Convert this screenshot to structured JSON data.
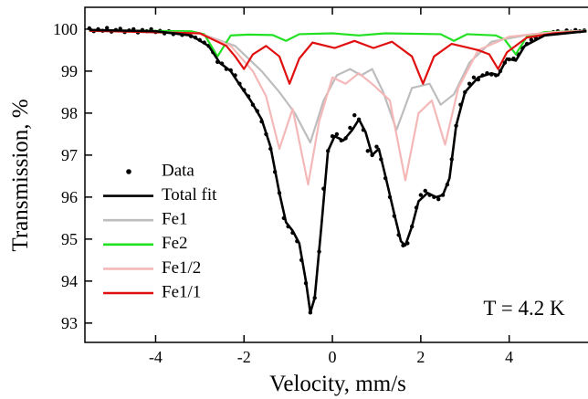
{
  "chart_data": {
    "type": "line",
    "xlabel": "Velocity, mm/s",
    "ylabel": "Transmission, %",
    "annotation": "T = 4.2 K",
    "xlim": [
      -5.6,
      5.8
    ],
    "ylim": [
      92.54,
      100.52
    ],
    "xticks": [
      -4,
      -2,
      0,
      2,
      4
    ],
    "yticks": [
      93,
      94,
      95,
      96,
      97,
      98,
      99,
      100
    ],
    "series": [
      {
        "name": "Data",
        "kind": "scatter",
        "color": "#000000",
        "x": [
          -5.5,
          -5.4,
          -5.3,
          -5.2,
          -5.1,
          -5.0,
          -4.9,
          -4.8,
          -4.7,
          -4.6,
          -4.5,
          -4.4,
          -4.3,
          -4.2,
          -4.1,
          -4.0,
          -3.9,
          -3.8,
          -3.7,
          -3.6,
          -3.5,
          -3.4,
          -3.3,
          -3.2,
          -3.1,
          -3.0,
          -2.9,
          -2.8,
          -2.7,
          -2.6,
          -2.5,
          -2.4,
          -2.3,
          -2.2,
          -2.1,
          -2.0,
          -1.9,
          -1.8,
          -1.7,
          -1.6,
          -1.5,
          -1.4,
          -1.3,
          -1.2,
          -1.1,
          -1.0,
          -0.9,
          -0.8,
          -0.7,
          -0.6,
          -0.5,
          -0.4,
          -0.3,
          -0.2,
          -0.1,
          0.0,
          0.1,
          0.2,
          0.3,
          0.4,
          0.5,
          0.6,
          0.7,
          0.8,
          0.9,
          1.0,
          1.1,
          1.2,
          1.3,
          1.4,
          1.5,
          1.6,
          1.7,
          1.8,
          1.9,
          2.0,
          2.1,
          2.2,
          2.3,
          2.4,
          2.5,
          2.6,
          2.7,
          2.8,
          2.9,
          3.0,
          3.1,
          3.2,
          3.3,
          3.4,
          3.5,
          3.6,
          3.7,
          3.8,
          3.9,
          4.0,
          4.1,
          4.2,
          4.3,
          4.4,
          4.5,
          4.6,
          4.7,
          4.8,
          4.9,
          5.0,
          5.1,
          5.2,
          5.3,
          5.4,
          5.5,
          5.6,
          5.7
        ],
        "values": [
          100.02,
          99.95,
          100.0,
          99.96,
          100.03,
          99.94,
          99.98,
          100.01,
          99.93,
          99.97,
          100.0,
          99.92,
          99.98,
          99.95,
          100.0,
          99.93,
          99.96,
          99.9,
          99.95,
          99.88,
          99.92,
          99.86,
          99.9,
          99.83,
          99.8,
          99.74,
          99.68,
          99.6,
          99.45,
          99.22,
          99.18,
          99.05,
          99.02,
          98.9,
          98.7,
          98.55,
          98.4,
          98.2,
          98.05,
          97.8,
          97.5,
          97.15,
          96.6,
          96.1,
          95.5,
          95.3,
          95.15,
          94.95,
          94.5,
          93.95,
          93.25,
          93.6,
          94.7,
          96.2,
          97.1,
          97.45,
          97.5,
          97.35,
          97.4,
          97.65,
          97.95,
          97.85,
          97.6,
          97.1,
          97.0,
          97.2,
          96.9,
          96.45,
          96.0,
          95.55,
          95.1,
          94.85,
          94.9,
          95.3,
          95.75,
          96.05,
          96.15,
          96.05,
          96.0,
          95.95,
          96.05,
          96.3,
          96.9,
          97.7,
          98.2,
          98.5,
          98.7,
          98.85,
          98.8,
          98.9,
          98.95,
          98.92,
          98.9,
          99.0,
          99.2,
          99.28,
          99.3,
          99.4,
          99.55,
          99.65,
          99.75,
          99.8,
          99.85,
          99.88,
          99.9,
          99.93,
          99.95,
          99.92,
          99.97,
          99.94,
          99.98,
          99.95,
          99.97
        ]
      },
      {
        "name": "Fe1",
        "kind": "line",
        "color": "#bdbdbd",
        "x": [
          -5.5,
          -3,
          -2.2,
          -1.6,
          -1.2,
          -0.85,
          -0.5,
          -0.2,
          0.1,
          0.4,
          0.65,
          0.9,
          1.15,
          1.45,
          1.8,
          2.2,
          2.45,
          2.75,
          3.1,
          3.6,
          4.5,
          5.75
        ],
        "values": [
          99.98,
          99.9,
          99.6,
          99.0,
          98.5,
          98.0,
          97.3,
          98.3,
          98.9,
          99.05,
          98.9,
          99.05,
          98.5,
          97.6,
          98.6,
          98.7,
          98.2,
          98.45,
          99.2,
          99.7,
          99.88,
          99.95
        ]
      },
      {
        "name": "Fe2",
        "kind": "line",
        "color": "#22e022",
        "x": [
          -5.5,
          -3.2,
          -2.9,
          -2.6,
          -2.3,
          -1.9,
          -1.35,
          -1.05,
          -0.75,
          0,
          0.6,
          1.2,
          2.45,
          2.75,
          3.05,
          3.7,
          3.9,
          4.15,
          4.4,
          4.8,
          5.75
        ],
        "values": [
          99.97,
          99.95,
          99.88,
          99.35,
          99.85,
          99.87,
          99.86,
          99.72,
          99.88,
          99.9,
          99.85,
          99.9,
          99.88,
          99.72,
          99.88,
          99.85,
          99.75,
          99.4,
          99.82,
          99.93,
          99.96
        ]
      },
      {
        "name": "Fe1/2",
        "kind": "line",
        "color": "#f4b8b8",
        "x": [
          -5.5,
          -3,
          -2.3,
          -1.8,
          -1.5,
          -1.2,
          -0.9,
          -0.55,
          -0.3,
          0,
          0.3,
          0.6,
          0.95,
          1.3,
          1.65,
          1.95,
          2.25,
          2.55,
          2.85,
          3.3,
          4,
          5,
          5.75
        ],
        "values": [
          99.98,
          99.9,
          99.6,
          99.0,
          98.4,
          97.15,
          98.1,
          96.3,
          97.8,
          98.85,
          98.7,
          98.95,
          98.65,
          98.3,
          96.4,
          98.0,
          98.3,
          97.25,
          98.6,
          99.5,
          99.82,
          99.93,
          99.96
        ]
      },
      {
        "name": "Fe1/1",
        "kind": "line",
        "color": "#e01010",
        "x": [
          -5.5,
          -3.0,
          -2.4,
          -2.2,
          -2.0,
          -1.8,
          -1.5,
          -1.2,
          -0.97,
          -0.75,
          -0.45,
          0.05,
          0.5,
          0.93,
          1.35,
          1.8,
          2.05,
          2.3,
          2.7,
          3.3,
          3.55,
          3.75,
          3.95,
          4.4,
          5.0,
          5.75
        ],
        "values": [
          99.96,
          99.9,
          99.6,
          99.35,
          99.05,
          99.4,
          99.6,
          99.35,
          98.7,
          99.3,
          99.68,
          99.55,
          99.72,
          99.55,
          99.7,
          99.35,
          98.7,
          99.35,
          99.65,
          99.5,
          99.4,
          99.05,
          99.45,
          99.8,
          99.9,
          99.95
        ]
      },
      {
        "name": "Total fit",
        "kind": "line",
        "color": "#000000",
        "x": [
          -5.5,
          -4,
          -3.2,
          -2.8,
          -2.55,
          -2.3,
          -2.05,
          -1.85,
          -1.6,
          -1.4,
          -1.2,
          -1.05,
          -0.9,
          -0.75,
          -0.6,
          -0.5,
          -0.4,
          -0.25,
          -0.1,
          0.05,
          0.25,
          0.45,
          0.6,
          0.75,
          0.9,
          1.05,
          1.2,
          1.4,
          1.55,
          1.65,
          1.8,
          1.95,
          2.15,
          2.35,
          2.5,
          2.65,
          2.8,
          3.0,
          3.3,
          3.6,
          3.75,
          3.95,
          4.15,
          4.35,
          4.8,
          5.75
        ],
        "values": [
          99.98,
          99.95,
          99.85,
          99.6,
          99.2,
          99.0,
          98.6,
          98.3,
          97.85,
          97.2,
          96.1,
          95.4,
          95.2,
          94.9,
          94.0,
          93.25,
          93.6,
          95.3,
          97.1,
          97.45,
          97.35,
          97.6,
          97.85,
          97.55,
          97.0,
          97.15,
          96.5,
          95.6,
          94.95,
          94.85,
          95.3,
          95.9,
          96.1,
          96.0,
          96.05,
          96.45,
          97.7,
          98.5,
          98.85,
          98.95,
          98.9,
          99.3,
          99.25,
          99.6,
          99.85,
          99.95
        ]
      }
    ],
    "legend_order": [
      0,
      5,
      1,
      2,
      3,
      4
    ]
  }
}
